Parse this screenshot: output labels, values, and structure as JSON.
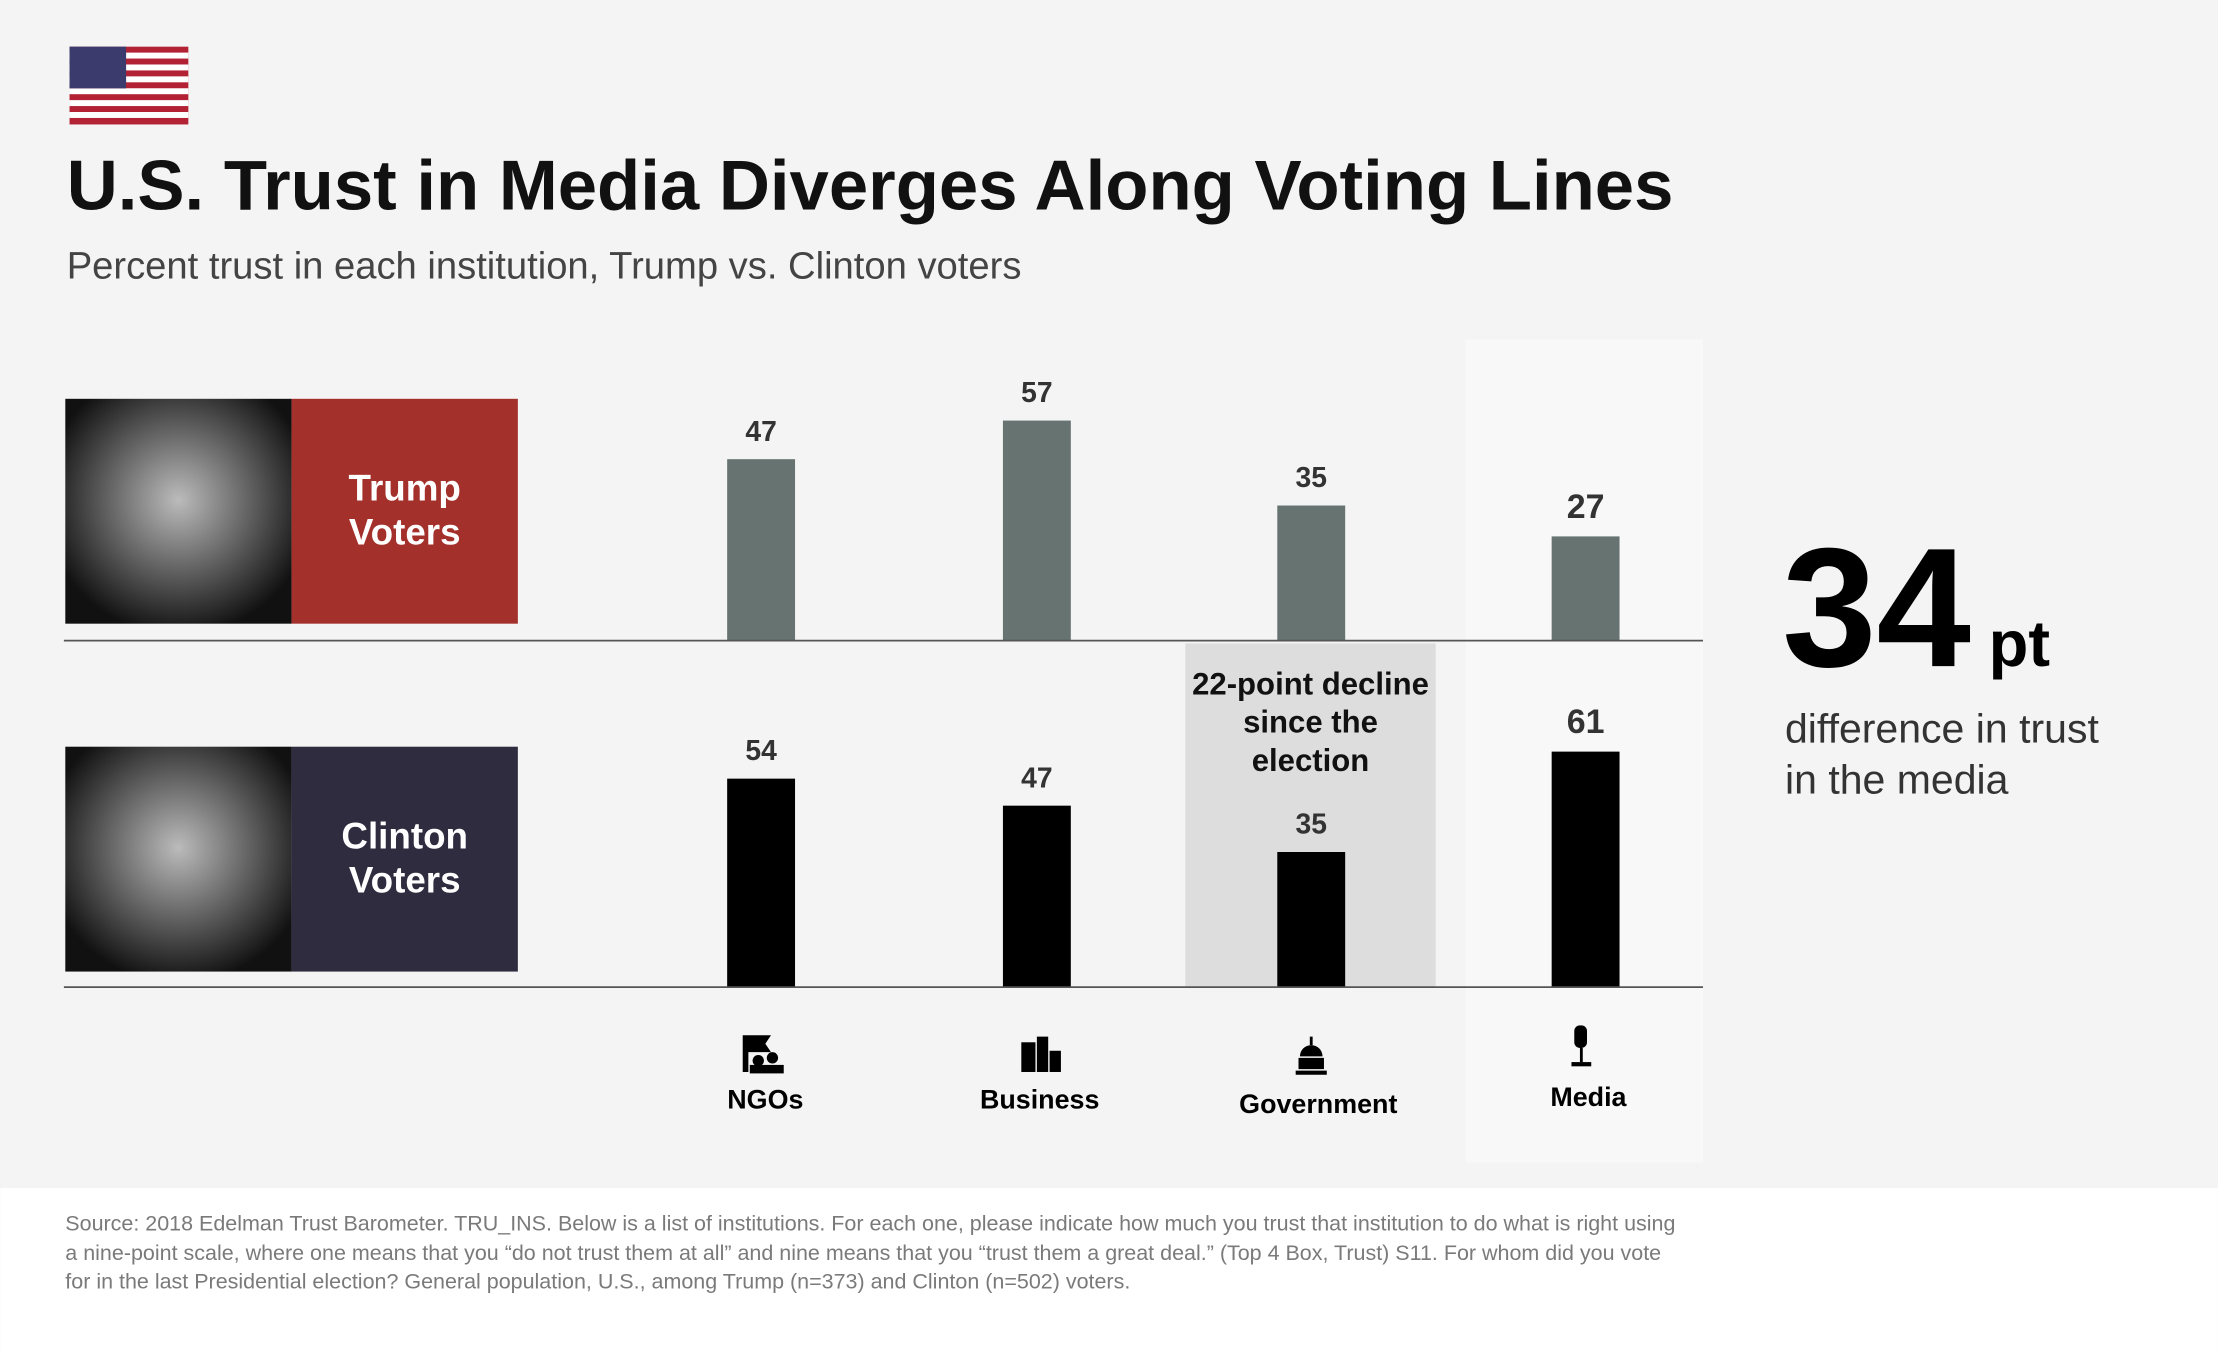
{
  "chart_data": {
    "type": "bar",
    "title": "U.S. Trust in Media Diverges Along Voting Lines",
    "subtitle": "Percent trust in each institution, Trump vs. Clinton voters",
    "categories": [
      "NGOs",
      "Business",
      "Government",
      "Media"
    ],
    "series": [
      {
        "name": "Trump Voters",
        "color": "#667370",
        "label_color": "#a3302a",
        "values": [
          47,
          57,
          35,
          27
        ]
      },
      {
        "name": "Clinton Voters",
        "color": "#000000",
        "label_color": "#2e2c3e",
        "values": [
          54,
          47,
          35,
          61
        ]
      }
    ],
    "annotation": "22-point decline since the election",
    "callout": {
      "value": 34,
      "unit": "pt",
      "text": "difference in trust in the media"
    },
    "source": "Source: 2018 Edelman Trust Barometer. TRU_INS. Below is a list of institutions. For each one, please indicate how much you trust that institution to do what is right using a nine-point scale, where one means that you “do not trust them at all” and nine means that you “trust them a great deal.” (Top 4 Box, Trust) S11. For whom did you vote for in the last Presidential election? General population, U.S., among Trump (n=373) and Clinton (n=502) voters."
  }
}
